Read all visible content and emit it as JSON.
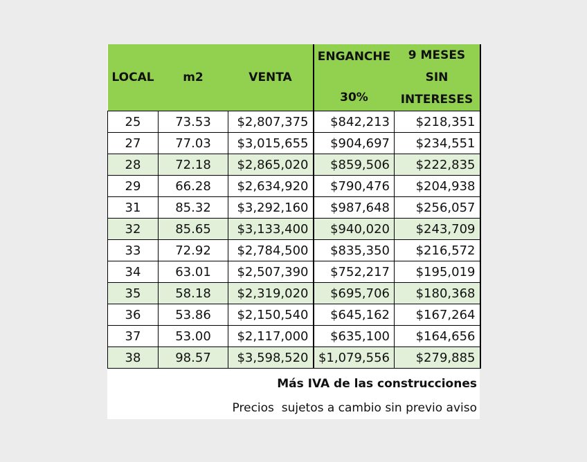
{
  "table": {
    "headers": {
      "local": "LOCAL",
      "m2": "m2",
      "venta": "VENTA",
      "enganche": [
        "ENGANCHE",
        "30%"
      ],
      "meses": [
        "9 MESES",
        "SIN",
        "INTERESES"
      ]
    },
    "rows": [
      {
        "local": "25",
        "m2": "73.53",
        "venta": "$2,807,375",
        "enganche": "$842,213",
        "meses": "$218,351"
      },
      {
        "local": "27",
        "m2": "77.03",
        "venta": "$3,015,655",
        "enganche": "$904,697",
        "meses": "$234,551"
      },
      {
        "local": "28",
        "m2": "72.18",
        "venta": "$2,865,020",
        "enganche": "$859,506",
        "meses": "$222,835"
      },
      {
        "local": "29",
        "m2": "66.28",
        "venta": "$2,634,920",
        "enganche": "$790,476",
        "meses": "$204,938"
      },
      {
        "local": "31",
        "m2": "85.32",
        "venta": "$3,292,160",
        "enganche": "$987,648",
        "meses": "$256,057"
      },
      {
        "local": "32",
        "m2": "85.65",
        "venta": "$3,133,400",
        "enganche": "$940,020",
        "meses": "$243,709"
      },
      {
        "local": "33",
        "m2": "72.92",
        "venta": "$2,784,500",
        "enganche": "$835,350",
        "meses": "$216,572"
      },
      {
        "local": "34",
        "m2": "63.01",
        "venta": "$2,507,390",
        "enganche": "$752,217",
        "meses": "$195,019"
      },
      {
        "local": "35",
        "m2": "58.18",
        "venta": "$2,319,020",
        "enganche": "$695,706",
        "meses": "$180,368"
      },
      {
        "local": "36",
        "m2": "53.86",
        "venta": "$2,150,540",
        "enganche": "$645,162",
        "meses": "$167,264"
      },
      {
        "local": "37",
        "m2": "53.00",
        "venta": "$2,117,000",
        "enganche": "$635,100",
        "meses": "$164,656"
      },
      {
        "local": "38",
        "m2": "98.57",
        "venta": "$3,598,520",
        "enganche": "$1,079,556",
        "meses": "$279,885"
      }
    ]
  },
  "notes": {
    "iva": "Más IVA de las construcciones",
    "disclaimer": "Precios  sujetos a cambio sin previo aviso"
  },
  "colors": {
    "header_green": "#92d050",
    "row_highlight": "#e2efd9",
    "page_background": "#ececec"
  }
}
